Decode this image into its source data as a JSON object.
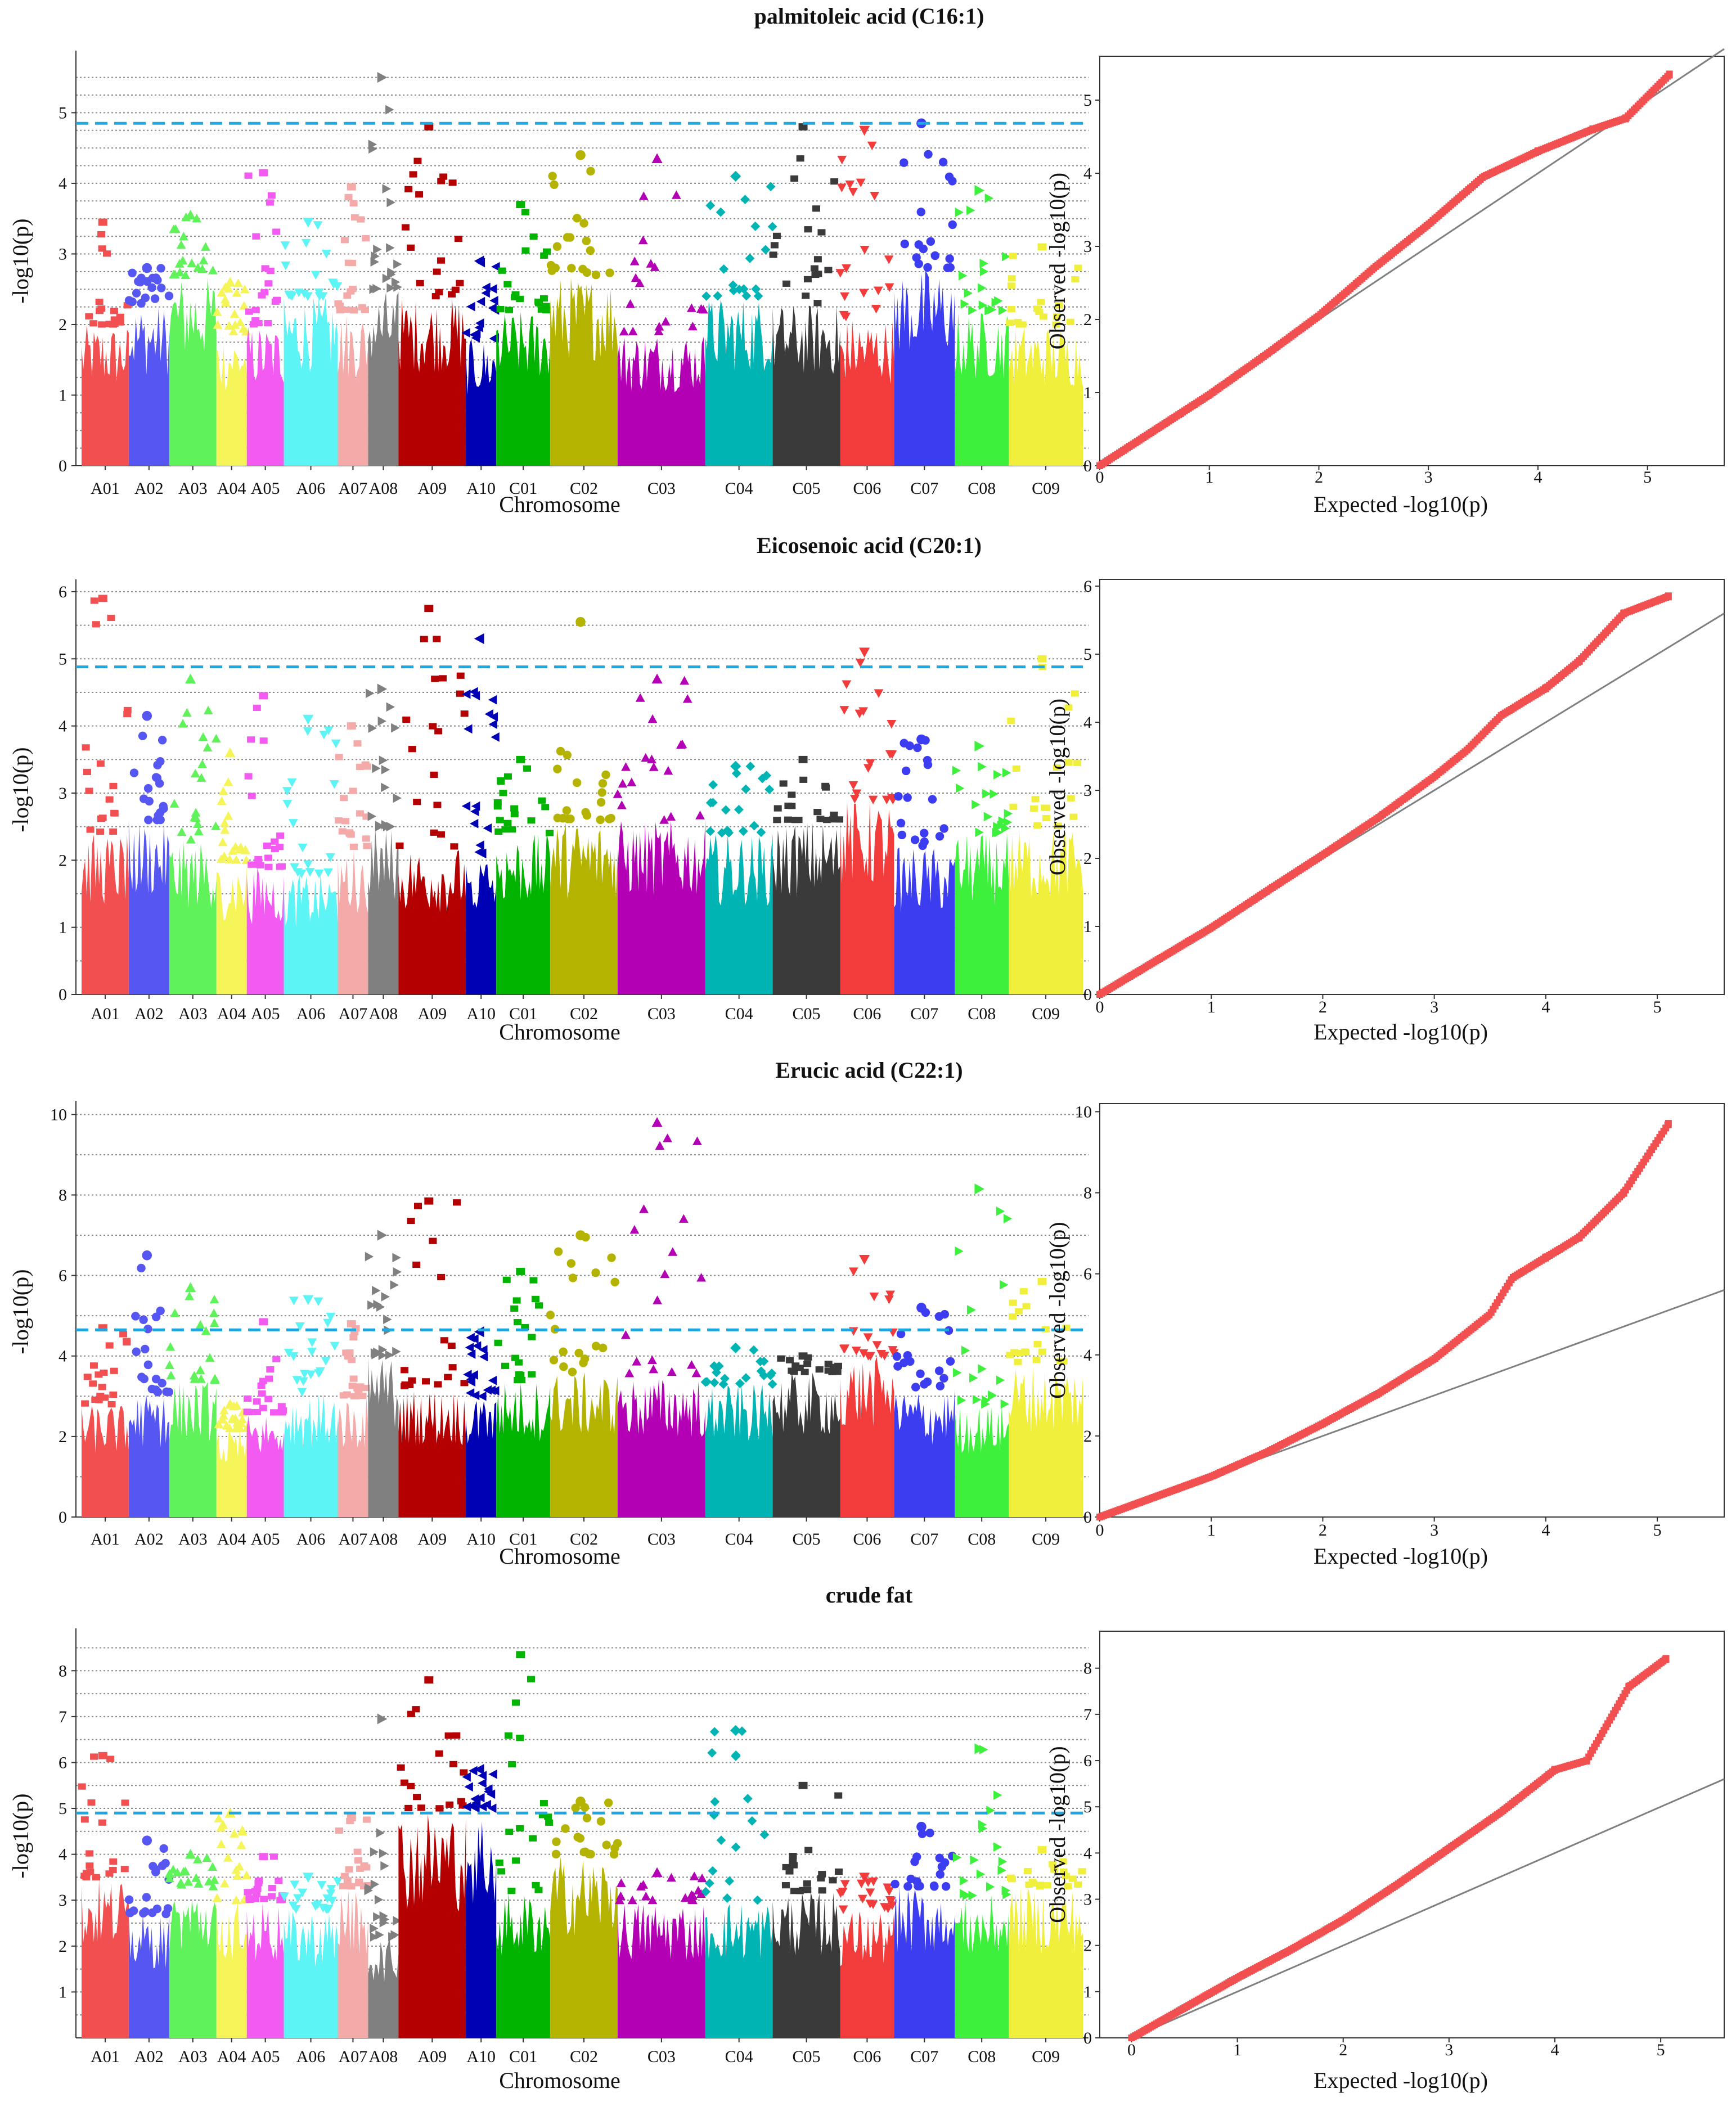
{
  "chromosome_colors": [
    "#f25050",
    "#5656f2",
    "#5ff25a",
    "#f5f55a",
    "#f25af2",
    "#5cf4f4",
    "#f5aaaa",
    "#808080",
    "#b40000",
    "#0000b4",
    "#00b400",
    "#b4b400",
    "#b400b4",
    "#00b4b4",
    "#3a3a3a",
    "#f23c3c",
    "#3c3cf0",
    "#3cf03c",
    "#f0f03c"
  ],
  "threshold_color": "#1fa8e0",
  "qq_point_color": "#f25050",
  "qq_line_color": "#808080",
  "chart_data": [
    {
      "type": "scatter",
      "subtype": "manhattan",
      "title": "palmitoleic acid (C16:1)",
      "xlabel": "Chromosome",
      "ylabel": "-log10(p)",
      "ylim": [
        0,
        5.8
      ],
      "yticks": [
        0,
        1,
        2,
        3,
        4,
        5
      ],
      "threshold": 4.85,
      "gridlines": [
        0.25,
        0.5,
        0.75,
        1,
        1.25,
        1.5,
        1.75,
        2,
        2.25,
        2.5,
        2.75,
        3,
        3.25,
        3.5,
        3.75,
        4,
        4.25,
        4.5,
        4.75,
        5,
        5.25,
        5.5
      ],
      "chromosomes": [
        "A01",
        "A02",
        "A03",
        "A04",
        "A05",
        "A06",
        "A07",
        "A08",
        "A09",
        "A10",
        "C01",
        "C02",
        "C03",
        "C04",
        "C05",
        "C06",
        "C07",
        "C08",
        "C09"
      ],
      "chromosome_widths": [
        0.7,
        0.6,
        0.7,
        0.45,
        0.55,
        0.8,
        0.45,
        0.45,
        1.0,
        0.45,
        0.8,
        1.0,
        1.3,
        1.0,
        1.0,
        0.8,
        0.9,
        0.8,
        1.1
      ],
      "chromosome_peaks": [
        3.45,
        2.8,
        3.55,
        2.6,
        4.15,
        3.45,
        3.95,
        5.5,
        4.8,
        2.9,
        3.7,
        4.4,
        4.35,
        4.1,
        4.8,
        4.75,
        4.85,
        3.9,
        3.1
      ],
      "chromosome_base": [
        2.0,
        2.3,
        2.7,
        1.9,
        2.0,
        2.4,
        2.2,
        2.5,
        2.4,
        1.8,
        2.2,
        2.7,
        1.9,
        2.4,
        2.3,
        2.1,
        2.8,
        2.2,
        2.0
      ]
    },
    {
      "type": "scatter",
      "subtype": "qq",
      "xlabel": "Expected -log10(p)",
      "ylabel": "Observed -log10(p)",
      "xlim": [
        0,
        5.7
      ],
      "ylim": [
        0,
        5.6
      ],
      "xticks": [
        0,
        1,
        2,
        3,
        4,
        5
      ],
      "yticks": [
        0,
        1,
        2,
        3,
        4,
        5
      ],
      "observed_at_expected": [
        [
          0,
          0
        ],
        [
          1,
          0.97
        ],
        [
          1.5,
          1.5
        ],
        [
          2,
          2.05
        ],
        [
          2.5,
          2.7
        ],
        [
          3,
          3.3
        ],
        [
          3.5,
          3.95
        ],
        [
          4,
          4.3
        ],
        [
          4.5,
          4.6
        ],
        [
          4.8,
          4.75
        ],
        [
          5.2,
          5.35
        ]
      ]
    },
    {
      "type": "scatter",
      "subtype": "manhattan",
      "title": "Eicosenoic acid (C20:1)",
      "xlabel": "Chromosome",
      "ylabel": "-log10(p)",
      "ylim": [
        0,
        6.1
      ],
      "yticks": [
        0,
        1,
        2,
        3,
        4,
        5,
        6
      ],
      "threshold": 4.88,
      "gridlines": [
        0.5,
        1,
        1.5,
        2,
        2.5,
        3,
        3.5,
        4,
        4.5,
        5,
        5.5,
        6
      ],
      "chromosomes": [
        "A01",
        "A02",
        "A03",
        "A04",
        "A05",
        "A06",
        "A07",
        "A08",
        "A09",
        "A10",
        "C01",
        "C02",
        "C03",
        "C04",
        "C05",
        "C06",
        "C07",
        "C08",
        "C09"
      ],
      "chromosome_widths": [
        0.7,
        0.6,
        0.7,
        0.45,
        0.55,
        0.8,
        0.45,
        0.45,
        1.0,
        0.45,
        0.8,
        1.0,
        1.3,
        1.0,
        1.0,
        0.8,
        0.9,
        0.8,
        1.1
      ],
      "chromosome_peaks": [
        5.9,
        4.15,
        4.7,
        3.6,
        4.45,
        4.1,
        4.0,
        4.55,
        5.75,
        5.3,
        3.5,
        5.55,
        4.7,
        3.4,
        3.5,
        5.1,
        3.8,
        3.7,
        5.0
      ],
      "chromosome_base": [
        2.4,
        2.6,
        2.3,
        2.0,
        1.9,
        1.8,
        2.2,
        2.5,
        2.2,
        2.1,
        2.4,
        2.6,
        2.6,
        2.4,
        2.6,
        2.9,
        2.2,
        2.4,
        2.5
      ]
    },
    {
      "type": "scatter",
      "subtype": "qq",
      "xlabel": "Expected -log10(p)",
      "ylabel": "Observed -log10(p)",
      "xlim": [
        0,
        5.6
      ],
      "ylim": [
        0,
        6.1
      ],
      "xticks": [
        0,
        1,
        2,
        3,
        4,
        5
      ],
      "yticks": [
        0,
        1,
        2,
        3,
        4,
        5,
        6
      ],
      "observed_at_expected": [
        [
          0,
          0
        ],
        [
          1,
          0.98
        ],
        [
          1.5,
          1.52
        ],
        [
          2,
          2.05
        ],
        [
          2.5,
          2.6
        ],
        [
          3,
          3.2
        ],
        [
          3.3,
          3.6
        ],
        [
          3.6,
          4.1
        ],
        [
          4,
          4.5
        ],
        [
          4.3,
          4.9
        ],
        [
          4.7,
          5.6
        ],
        [
          5.1,
          5.85
        ]
      ]
    },
    {
      "type": "scatter",
      "subtype": "manhattan",
      "title": "Erucic acid (C22:1)",
      "xlabel": "Chromosome",
      "ylabel": "-log10(p)",
      "ylim": [
        0,
        10.2
      ],
      "yticks": [
        0,
        2,
        4,
        6,
        8,
        10
      ],
      "threshold": 4.65,
      "gridlines": [
        1,
        2,
        3,
        4,
        5,
        6,
        7,
        8,
        9,
        10
      ],
      "chromosomes": [
        "A01",
        "A02",
        "A03",
        "A04",
        "A05",
        "A06",
        "A07",
        "A08",
        "A09",
        "A10",
        "C01",
        "C02",
        "C03",
        "C04",
        "C05",
        "C06",
        "C07",
        "C08",
        "C09"
      ],
      "chromosome_widths": [
        0.7,
        0.6,
        0.7,
        0.45,
        0.55,
        0.8,
        0.45,
        0.45,
        1.0,
        0.45,
        0.8,
        1.0,
        1.3,
        1.0,
        1.0,
        0.8,
        0.9,
        0.8,
        1.1
      ],
      "chromosome_peaks": [
        4.7,
        6.5,
        5.7,
        2.8,
        4.85,
        5.4,
        4.8,
        7.0,
        7.85,
        4.6,
        6.1,
        7.0,
        9.8,
        4.2,
        4.0,
        6.4,
        5.2,
        8.15,
        5.85
      ],
      "chromosome_base": [
        2.8,
        3.1,
        3.4,
        2.2,
        2.6,
        3.1,
        3.0,
        4.0,
        3.2,
        3.0,
        3.4,
        3.6,
        3.5,
        3.3,
        3.6,
        4.0,
        3.2,
        2.8,
        3.8
      ]
    },
    {
      "type": "scatter",
      "subtype": "qq",
      "xlabel": "Expected -log10(p)",
      "ylabel": "Observed -log10(p)",
      "xlim": [
        0,
        5.6
      ],
      "ylim": [
        0,
        10.2
      ],
      "xticks": [
        0,
        1,
        2,
        3,
        4,
        5
      ],
      "yticks": [
        0,
        2,
        4,
        6,
        8,
        10
      ],
      "observed_at_expected": [
        [
          0,
          0
        ],
        [
          1,
          1.0
        ],
        [
          1.5,
          1.6
        ],
        [
          2,
          2.3
        ],
        [
          2.5,
          3.05
        ],
        [
          3,
          3.9
        ],
        [
          3.5,
          5.0
        ],
        [
          3.7,
          5.9
        ],
        [
          4,
          6.4
        ],
        [
          4.3,
          6.9
        ],
        [
          4.7,
          8.0
        ],
        [
          5.1,
          9.7
        ]
      ]
    },
    {
      "type": "scatter",
      "subtype": "manhattan",
      "title": "crude fat",
      "xlabel": "Chromosome",
      "ylabel": "-log10(p)",
      "ylim": [
        0,
        8.8
      ],
      "yticks": [
        1,
        2,
        3,
        4,
        5,
        6,
        7,
        8
      ],
      "threshold": 4.9,
      "gridlines": [
        0.5,
        1,
        1.5,
        2,
        2.5,
        3,
        3.5,
        4,
        4.5,
        5,
        5.5,
        6,
        6.5,
        7,
        7.5,
        8,
        8.5
      ],
      "chromosomes": [
        "A01",
        "A02",
        "A03",
        "A04",
        "A05",
        "A06",
        "A07",
        "A08",
        "A09",
        "A10",
        "C01",
        "C02",
        "C03",
        "C04",
        "C05",
        "C06",
        "C07",
        "C08",
        "C09"
      ],
      "chromosome_widths": [
        0.7,
        0.6,
        0.7,
        0.45,
        0.55,
        0.8,
        0.45,
        0.45,
        1.0,
        0.45,
        0.8,
        1.0,
        1.3,
        1.0,
        1.0,
        0.8,
        0.9,
        0.8,
        1.1
      ],
      "chromosome_peaks": [
        6.15,
        4.3,
        4.0,
        4.9,
        3.95,
        3.5,
        4.8,
        6.95,
        7.8,
        5.85,
        8.35,
        5.15,
        3.6,
        6.7,
        5.5,
        3.5,
        4.6,
        6.3,
        4.1
      ],
      "chromosome_base": [
        3.5,
        2.7,
        3.3,
        3.0,
        3.0,
        2.8,
        3.3,
        2.2,
        5.0,
        5.0,
        3.2,
        4.0,
        3.0,
        3.0,
        3.2,
        2.8,
        3.3,
        3.1,
        3.3
      ]
    },
    {
      "type": "scatter",
      "subtype": "qq",
      "xlabel": "Expected -log10(p)",
      "ylabel": "Observed -log10(p)",
      "xlim": [
        -0.3,
        5.6
      ],
      "ylim": [
        0,
        8.8
      ],
      "xticks": [
        0,
        1,
        2,
        3,
        4,
        5
      ],
      "yticks": [
        0,
        1,
        2,
        3,
        4,
        5,
        6,
        7,
        8
      ],
      "observed_at_expected": [
        [
          0,
          0
        ],
        [
          1,
          1.3
        ],
        [
          1.5,
          1.9
        ],
        [
          2,
          2.55
        ],
        [
          2.5,
          3.3
        ],
        [
          3,
          4.1
        ],
        [
          3.5,
          4.9
        ],
        [
          4,
          5.8
        ],
        [
          4.3,
          6.0
        ],
        [
          4.7,
          7.6
        ],
        [
          5.05,
          8.2
        ]
      ]
    }
  ]
}
